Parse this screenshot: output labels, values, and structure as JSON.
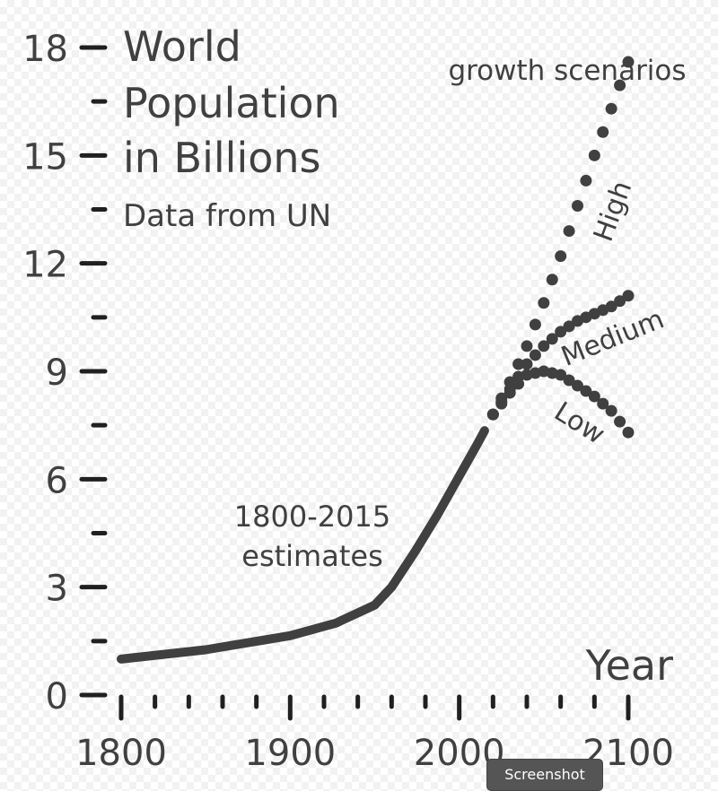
{
  "chart_data": {
    "type": "line",
    "title_lines": [
      "World",
      "Population",
      "in Billions"
    ],
    "subtitle": "Data from UN",
    "xlabel": "Year",
    "ylabel": "",
    "xlim": [
      1800,
      2100
    ],
    "ylim": [
      0,
      18
    ],
    "x_ticks": [
      1800,
      1900,
      2000,
      2100
    ],
    "y_ticks": [
      0,
      3,
      6,
      9,
      12,
      15,
      18
    ],
    "grid": false,
    "series": [
      {
        "name": "1800-2015 estimates",
        "style": "solid",
        "x": [
          1800,
          1850,
          1900,
          1927,
          1950,
          1960,
          1974,
          1987,
          1999,
          2011,
          2015
        ],
        "y": [
          1.0,
          1.26,
          1.65,
          2.0,
          2.5,
          3.0,
          4.0,
          5.0,
          6.0,
          7.0,
          7.35
        ]
      },
      {
        "name": "High",
        "style": "dotted",
        "x": [
          2020,
          2030,
          2040,
          2050,
          2060,
          2070,
          2080,
          2090,
          2100
        ],
        "y": [
          7.8,
          8.7,
          9.7,
          10.9,
          12.2,
          13.6,
          15.0,
          16.3,
          17.6
        ]
      },
      {
        "name": "Medium",
        "style": "dotted",
        "x": [
          2020,
          2030,
          2040,
          2050,
          2060,
          2070,
          2080,
          2090,
          2100
        ],
        "y": [
          7.8,
          8.5,
          9.2,
          9.7,
          10.1,
          10.4,
          10.6,
          10.8,
          11.1
        ]
      },
      {
        "name": "Low",
        "style": "dotted",
        "x": [
          2020,
          2030,
          2040,
          2050,
          2060,
          2070,
          2080,
          2090,
          2100
        ],
        "y": [
          7.8,
          8.4,
          8.9,
          9.0,
          8.9,
          8.6,
          8.3,
          7.9,
          7.3
        ]
      }
    ],
    "annotations": {
      "estimates": "1800-2015\nestimates",
      "scenarios_header": "growth scenarios"
    },
    "colors": {
      "ink": "#404040",
      "axis": "#202020"
    }
  },
  "overlay": {
    "label": "Screenshot"
  }
}
